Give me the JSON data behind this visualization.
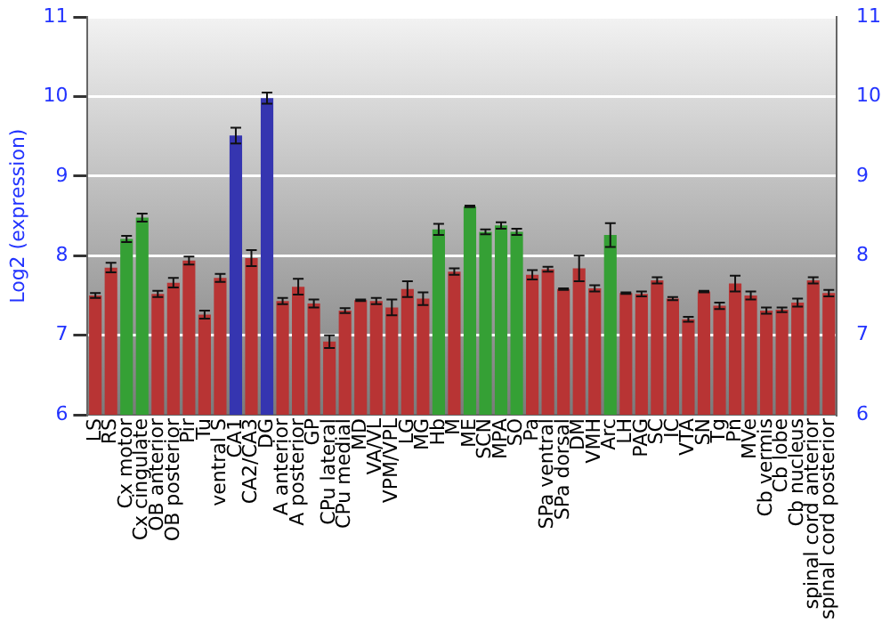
{
  "chart_data": {
    "type": "bar",
    "ylabel": "Log2 (expression)",
    "categories": [
      "LS",
      "RS",
      "Cx motor",
      "Cx cingulate",
      "OB anterior",
      "OB posterior",
      "Pir",
      "Tu",
      "ventral S",
      "CA1",
      "CA2/CA3",
      "DG",
      "A anterior",
      "A posterior",
      "GP",
      "CPu lateral",
      "CPu medial",
      "MD",
      "VA/VL",
      "VPM/VPL",
      "LG",
      "MG",
      "Hb",
      "M",
      "ME",
      "SCN",
      "MPA",
      "SO",
      "Pa",
      "SPa ventral",
      "SPa dorsal",
      "DM",
      "VMH",
      "Arc",
      "LH",
      "PAG",
      "SC",
      "IC",
      "VTA",
      "SN",
      "Tg",
      "Pn",
      "MVe",
      "Cb vermis",
      "Cb lobe",
      "Cb nucleus",
      "spinal cord anterior",
      "spinal cord posterior"
    ],
    "values": [
      7.5,
      7.85,
      8.21,
      8.48,
      7.52,
      7.66,
      7.94,
      7.26,
      7.72,
      9.51,
      7.97,
      9.98,
      7.43,
      7.61,
      7.4,
      6.92,
      7.31,
      7.44,
      7.43,
      7.35,
      7.58,
      7.46,
      8.33,
      7.8,
      8.62,
      8.3,
      8.38,
      8.3,
      7.76,
      7.83,
      7.58,
      7.84,
      7.59,
      8.26,
      7.53,
      7.52,
      7.69,
      7.46,
      7.2,
      7.55,
      7.37,
      7.65,
      7.5,
      7.31,
      7.32,
      7.41,
      7.69,
      7.53
    ],
    "errors": [
      0.03,
      0.06,
      0.04,
      0.05,
      0.04,
      0.06,
      0.05,
      0.05,
      0.05,
      0.1,
      0.1,
      0.07,
      0.04,
      0.1,
      0.05,
      0.08,
      0.03,
      0.01,
      0.04,
      0.1,
      0.1,
      0.08,
      0.07,
      0.04,
      0.01,
      0.03,
      0.04,
      0.04,
      0.06,
      0.03,
      0.01,
      0.16,
      0.04,
      0.15,
      0.01,
      0.03,
      0.04,
      0.02,
      0.03,
      0.01,
      0.04,
      0.1,
      0.05,
      0.04,
      0.03,
      0.05,
      0.04,
      0.04
    ],
    "colors": [
      "#b83434",
      "#b83434",
      "#35a035",
      "#35a035",
      "#b83434",
      "#b83434",
      "#b83434",
      "#b83434",
      "#b83434",
      "#3535b0",
      "#b83434",
      "#3535b0",
      "#b83434",
      "#b83434",
      "#b83434",
      "#b83434",
      "#b83434",
      "#b83434",
      "#b83434",
      "#b83434",
      "#b83434",
      "#b83434",
      "#35a035",
      "#b83434",
      "#35a035",
      "#35a035",
      "#35a035",
      "#35a035",
      "#b83434",
      "#b83434",
      "#b83434",
      "#b83434",
      "#b83434",
      "#35a035",
      "#b83434",
      "#b83434",
      "#b83434",
      "#b83434",
      "#b83434",
      "#b83434",
      "#b83434",
      "#b83434",
      "#b83434",
      "#b83434",
      "#b83434",
      "#b83434",
      "#b83434",
      "#b83434"
    ],
    "ylim": [
      6,
      11
    ],
    "yticks": [
      6,
      7,
      8,
      9,
      10,
      11
    ],
    "y2lim": [
      6,
      11
    ],
    "y2ticks": [
      6,
      7,
      8,
      9,
      10,
      11
    ],
    "grid": "y",
    "legend": false
  }
}
